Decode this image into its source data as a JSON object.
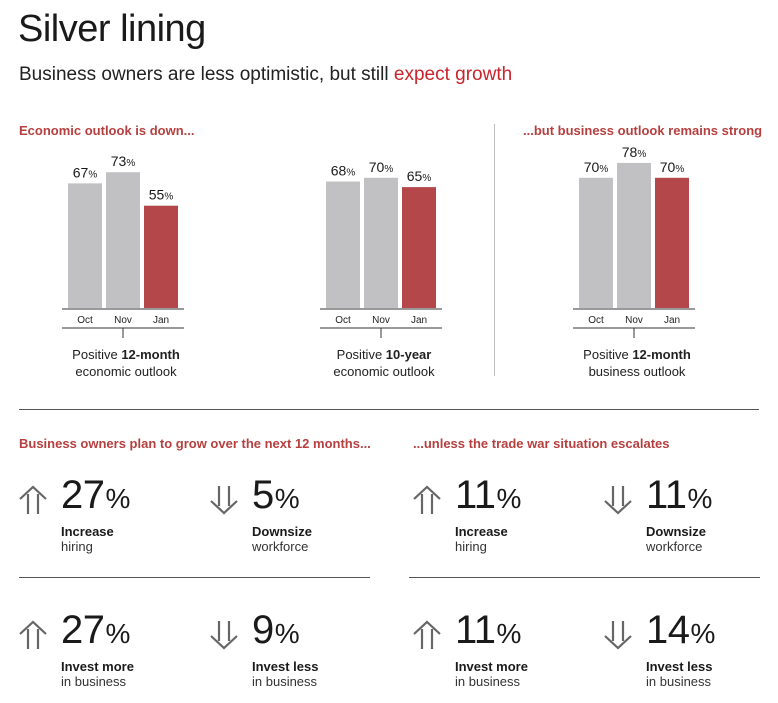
{
  "header": {
    "title": "Silver lining",
    "subtitle_prefix": "Business owners are less optimistic, but still ",
    "subtitle_accent": "expect growth"
  },
  "sections": {
    "economic": "Economic outlook is down...",
    "business": "...but business outlook remains strong",
    "grow": "Business owners plan to grow over the next 12 months...",
    "trade": "...unless the trade war situation escalates"
  },
  "colors": {
    "gray": "#c1c1c3",
    "red": "#b4474a",
    "accent": "#c8242b",
    "head": "#b5403f"
  },
  "chart_data": [
    {
      "type": "bar",
      "categories": [
        "Oct",
        "Nov",
        "Jan"
      ],
      "values": [
        67,
        73,
        55
      ],
      "value_labels": [
        "67%",
        "73%",
        "55%"
      ],
      "caption_prefix": "Positive ",
      "caption_bold": "12-month",
      "caption_line2": "economic outlook",
      "ylim": [
        0,
        100
      ]
    },
    {
      "type": "bar",
      "categories": [
        "Oct",
        "Nov",
        "Jan"
      ],
      "values": [
        68,
        70,
        65
      ],
      "value_labels": [
        "68%",
        "70%",
        "65%"
      ],
      "caption_prefix": "Positive ",
      "caption_bold": "10-year",
      "caption_line2": "economic outlook",
      "ylim": [
        0,
        100
      ]
    },
    {
      "type": "bar",
      "categories": [
        "Oct",
        "Nov",
        "Jan"
      ],
      "values": [
        70,
        78,
        70
      ],
      "value_labels": [
        "70%",
        "78%",
        "70%"
      ],
      "caption_prefix": "Positive ",
      "caption_bold": "12-month",
      "caption_line2": "business outlook",
      "ylim": [
        0,
        100
      ]
    }
  ],
  "stats": {
    "grow_hiring": {
      "value": "27",
      "pct": "%",
      "line1": "Increase",
      "line2": "hiring",
      "direction": "up-arrow-icon"
    },
    "grow_downsize": {
      "value": "5",
      "pct": "%",
      "line1": "Downsize",
      "line2": "workforce",
      "direction": "down-arrow-icon"
    },
    "grow_invest_more": {
      "value": "27",
      "pct": "%",
      "line1": "Invest more",
      "line2": "in business",
      "direction": "up-arrow-icon"
    },
    "grow_invest_less": {
      "value": "9",
      "pct": "%",
      "line1": "Invest less",
      "line2": "in business",
      "direction": "down-arrow-icon"
    },
    "trade_hiring": {
      "value": "11",
      "pct": "%",
      "line1": "Increase",
      "line2": "hiring",
      "direction": "up-arrow-icon"
    },
    "trade_downsize": {
      "value": "11",
      "pct": "%",
      "line1": "Downsize",
      "line2": "workforce",
      "direction": "down-arrow-icon"
    },
    "trade_invest_more": {
      "value": "11",
      "pct": "%",
      "line1": "Invest more",
      "line2": "in business",
      "direction": "up-arrow-icon"
    },
    "trade_invest_less": {
      "value": "14",
      "pct": "%",
      "line1": "Invest less",
      "line2": "in business",
      "direction": "down-arrow-icon"
    }
  }
}
